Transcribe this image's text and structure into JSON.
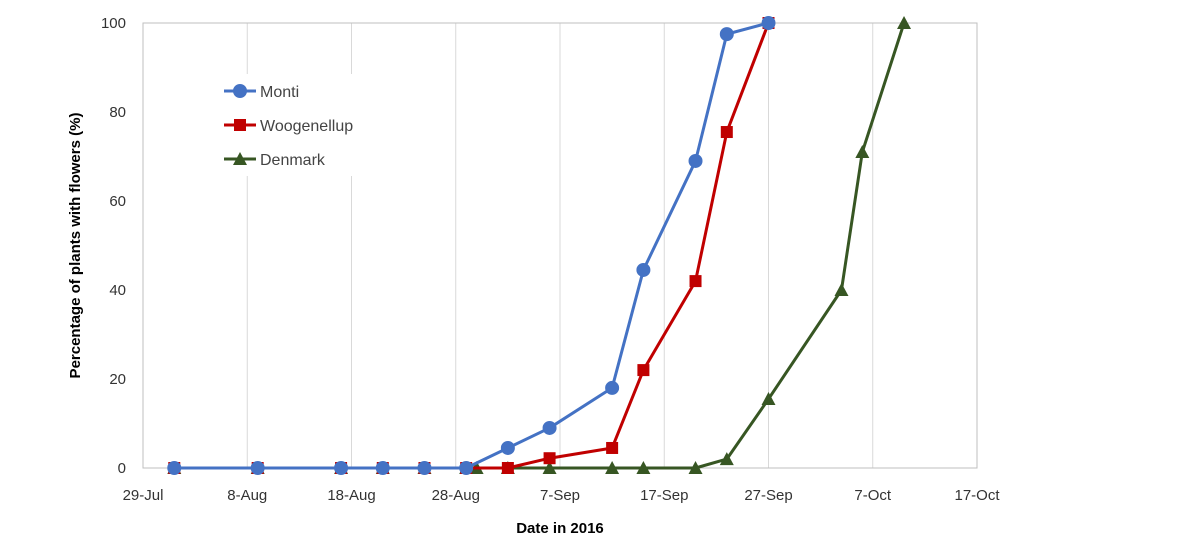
{
  "chart_data": {
    "type": "line",
    "xlabel": "Date in 2016",
    "ylabel": "Percentage of plants with flowers (%)",
    "x_ticks": [
      "2016-07-29",
      "2016-08-08",
      "2016-08-18",
      "2016-08-28",
      "2016-09-07",
      "2016-09-17",
      "2016-09-27",
      "2016-10-07",
      "2016-10-17"
    ],
    "x_tick_labels": [
      "29-Jul",
      "8-Aug",
      "18-Aug",
      "28-Aug",
      "7-Sep",
      "17-Sep",
      "27-Sep",
      "7-Oct",
      "17-Oct"
    ],
    "xlim": [
      "2016-07-29",
      "2016-10-17"
    ],
    "ylim": [
      0,
      100
    ],
    "y_ticks": [
      0,
      20,
      40,
      60,
      80,
      100
    ],
    "grid": "vertical",
    "legend": "top-left",
    "series": [
      {
        "name": "Monti",
        "color": "#4472C4",
        "marker": "circle",
        "points": [
          [
            "2016-08-01",
            0
          ],
          [
            "2016-08-09",
            0
          ],
          [
            "2016-08-17",
            0
          ],
          [
            "2016-08-21",
            0
          ],
          [
            "2016-08-25",
            0
          ],
          [
            "2016-08-29",
            0
          ],
          [
            "2016-09-02",
            4.5
          ],
          [
            "2016-09-06",
            9
          ],
          [
            "2016-09-12",
            18
          ],
          [
            "2016-09-15",
            44.5
          ],
          [
            "2016-09-20",
            69
          ],
          [
            "2016-09-23",
            97.5
          ],
          [
            "2016-09-27",
            100
          ]
        ]
      },
      {
        "name": "Woogenellup",
        "color": "#C00000",
        "marker": "square",
        "points": [
          [
            "2016-08-01",
            0
          ],
          [
            "2016-08-09",
            0
          ],
          [
            "2016-08-17",
            0
          ],
          [
            "2016-08-21",
            0
          ],
          [
            "2016-08-25",
            0
          ],
          [
            "2016-08-29",
            0
          ],
          [
            "2016-09-02",
            0
          ],
          [
            "2016-09-06",
            2.2
          ],
          [
            "2016-09-12",
            4.5
          ],
          [
            "2016-09-15",
            22
          ],
          [
            "2016-09-20",
            42
          ],
          [
            "2016-09-23",
            75.5
          ],
          [
            "2016-09-27",
            100
          ]
        ]
      },
      {
        "name": "Denmark",
        "color": "#375623",
        "marker": "triangle",
        "points": [
          [
            "2016-08-01",
            0
          ],
          [
            "2016-08-09",
            0
          ],
          [
            "2016-08-17",
            0
          ],
          [
            "2016-08-21",
            0
          ],
          [
            "2016-08-25",
            0
          ],
          [
            "2016-08-29",
            0
          ],
          [
            "2016-08-30",
            0
          ],
          [
            "2016-09-02",
            0
          ],
          [
            "2016-09-06",
            0
          ],
          [
            "2016-09-12",
            0
          ],
          [
            "2016-09-15",
            0
          ],
          [
            "2016-09-20",
            0
          ],
          [
            "2016-09-23",
            2
          ],
          [
            "2016-09-27",
            15.5
          ],
          [
            "2016-10-04",
            40
          ],
          [
            "2016-10-06",
            71
          ],
          [
            "2016-10-10",
            100
          ]
        ]
      }
    ]
  }
}
